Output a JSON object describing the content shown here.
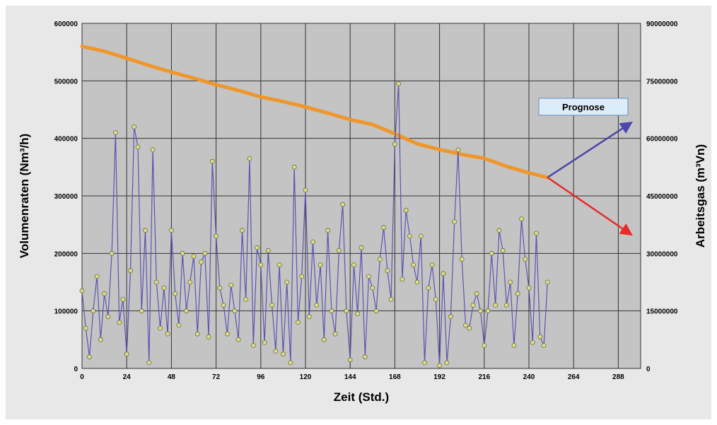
{
  "chart_data": {
    "type": "line",
    "title": "",
    "xlabel": "Zeit (Std.)",
    "ylabel_left": "Volumenraten (Nm³/h)",
    "ylabel_right": "Arbeitsgas (m³Vn)",
    "xlim": [
      0,
      300
    ],
    "ylim_left": [
      0,
      600000
    ],
    "ylim_right": [
      0,
      90000000
    ],
    "x_ticks": [
      "0",
      "24",
      "48",
      "72",
      "96",
      "120",
      "144",
      "168",
      "192",
      "216",
      "240",
      "264",
      "288"
    ],
    "y_ticks_left": [
      "0",
      "100000",
      "200000",
      "300000",
      "400000",
      "500000",
      "600000"
    ],
    "y_ticks_right": [
      "0",
      "15000000",
      "30000000",
      "45000000",
      "60000000",
      "75000000",
      "90000000"
    ],
    "grid": true,
    "annotation": "Prognose",
    "colors": {
      "plot_bg": "#c4c4c4",
      "frame_bg": "#e8e8e8",
      "rate_line": "#5b55b0",
      "rate_marker_fill": "#dcdc8c",
      "rate_marker_stroke": "#6e6e3c",
      "gas_line": "#f0962a",
      "prognose_up": "#4b47a8",
      "prognose_down": "#e82a2a",
      "label_box": "#dcecfa"
    },
    "series": [
      {
        "axis": "left",
        "x": [
          0,
          2,
          4,
          6,
          8,
          10,
          12,
          14,
          16,
          18,
          20,
          22,
          24,
          26,
          28,
          30,
          32,
          34,
          36,
          38,
          40,
          42,
          44,
          46,
          48,
          50,
          52,
          54,
          56,
          58,
          60,
          62,
          64,
          66,
          68,
          70,
          72,
          74,
          76,
          78,
          80,
          82,
          84,
          86,
          88,
          90,
          92,
          94,
          96,
          98,
          100,
          102,
          104,
          106,
          108,
          110,
          112,
          114,
          116,
          118,
          120,
          122,
          124,
          126,
          128,
          130,
          132,
          134,
          136,
          138,
          140,
          142,
          144,
          146,
          148,
          150,
          152,
          154,
          156,
          158,
          160,
          162,
          164,
          166,
          168,
          170,
          172,
          174,
          176,
          178,
          180,
          182,
          184,
          186,
          188,
          190,
          192,
          194,
          196,
          198,
          200,
          202,
          204,
          206,
          208,
          210,
          212,
          214,
          216,
          218,
          220,
          222,
          224,
          226,
          228,
          230,
          232,
          234,
          236,
          238,
          240,
          242,
          244,
          246,
          248,
          250
        ],
        "values": [
          135000,
          70000,
          20000,
          100000,
          160000,
          50000,
          130000,
          90000,
          200000,
          410000,
          80000,
          120000,
          25000,
          170000,
          420000,
          385000,
          100000,
          240000,
          10000,
          380000,
          150000,
          70000,
          140000,
          60000,
          240000,
          130000,
          75000,
          200000,
          100000,
          150000,
          195000,
          60000,
          185000,
          200000,
          55000,
          360000,
          230000,
          140000,
          110000,
          60000,
          145000,
          100000,
          50000,
          240000,
          120000,
          365000,
          40000,
          210000,
          180000,
          45000,
          205000,
          110000,
          30000,
          180000,
          25000,
          150000,
          10000,
          350000,
          80000,
          160000,
          310000,
          90000,
          220000,
          110000,
          180000,
          50000,
          240000,
          100000,
          60000,
          205000,
          285000,
          100000,
          15000,
          180000,
          95000,
          210000,
          20000,
          160000,
          140000,
          100000,
          190000,
          245000,
          170000,
          120000,
          390000,
          495000,
          155000,
          275000,
          230000,
          180000,
          150000,
          230000,
          10000,
          140000,
          180000,
          120000,
          5000,
          165000,
          10000,
          90000,
          255000,
          380000,
          190000,
          75000,
          70000,
          110000,
          130000,
          100000,
          40000,
          100000,
          200000,
          110000,
          240000,
          205000,
          110000,
          150000,
          40000,
          130000,
          260000,
          190000,
          140000,
          45000,
          235000,
          55000,
          40000,
          150000
        ],
        "style": "line-with-markers"
      },
      {
        "axis": "right",
        "x": [
          0,
          12,
          24,
          36,
          48,
          60,
          72,
          84,
          96,
          108,
          120,
          132,
          144,
          156,
          168,
          180,
          192,
          204,
          216,
          228,
          240,
          250
        ],
        "values": [
          84000000,
          82700000,
          80900000,
          79000000,
          77300000,
          75700000,
          74000000,
          72500000,
          70800000,
          69600000,
          68200000,
          66600000,
          64900000,
          63600000,
          61200000,
          58600000,
          57100000,
          55800000,
          54800000,
          52700000,
          51000000,
          49800000
        ],
        "style": "thick-line"
      },
      {
        "axis": "right",
        "x": [
          250,
          300
        ],
        "values": [
          49800000,
          64000000
        ],
        "style": "arrow"
      },
      {
        "axis": "right",
        "x": [
          250,
          300
        ],
        "values": [
          49800000,
          35000000
        ],
        "style": "arrow"
      }
    ]
  }
}
